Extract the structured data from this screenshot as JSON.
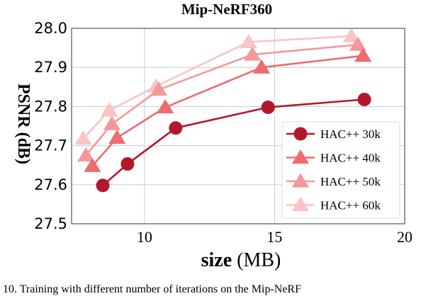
{
  "chart_data": {
    "type": "line",
    "title": "Mip-NeRF360",
    "xlabel": "size (MB)",
    "xlabel_bold": "size",
    "xlabel_unit": "(MB)",
    "ylabel": "PSNR (dB)",
    "xlim": [
      7.2,
      20
    ],
    "ylim": [
      27.5,
      28.0
    ],
    "xticks": [
      "10",
      "15",
      "20"
    ],
    "yticks": [
      "27.5",
      "27.6",
      "27.7",
      "27.8",
      "27.9",
      "28.0"
    ],
    "grid": true,
    "legend_position": "bottom-right",
    "series": [
      {
        "name": "HAC++ 30k",
        "marker": "circle",
        "color": "#b2182b",
        "x": [
          8.4,
          9.35,
          11.2,
          14.75,
          18.45
        ],
        "y": [
          27.598,
          27.653,
          27.745,
          27.798,
          27.818
        ]
      },
      {
        "name": "HAC++ 40k",
        "marker": "triangle",
        "color": "#ee6b6e",
        "x": [
          8.0,
          8.95,
          10.8,
          14.5,
          18.4
        ],
        "y": [
          27.648,
          27.72,
          27.798,
          27.9,
          27.93
        ]
      },
      {
        "name": "HAC++ 50k",
        "marker": "triangle",
        "color": "#f4999a",
        "x": [
          7.75,
          8.75,
          10.55,
          14.15,
          18.2
        ],
        "y": [
          27.675,
          27.755,
          27.843,
          27.933,
          27.958
        ]
      },
      {
        "name": "HAC++ 60k",
        "marker": "triangle",
        "color": "#f9c4c6",
        "x": [
          7.65,
          8.65,
          10.45,
          14.0,
          17.95
        ],
        "y": [
          27.718,
          27.79,
          27.852,
          27.965,
          27.98
        ]
      }
    ]
  },
  "caption": "10. Training with different number of iterations on the Mip-NeRF"
}
